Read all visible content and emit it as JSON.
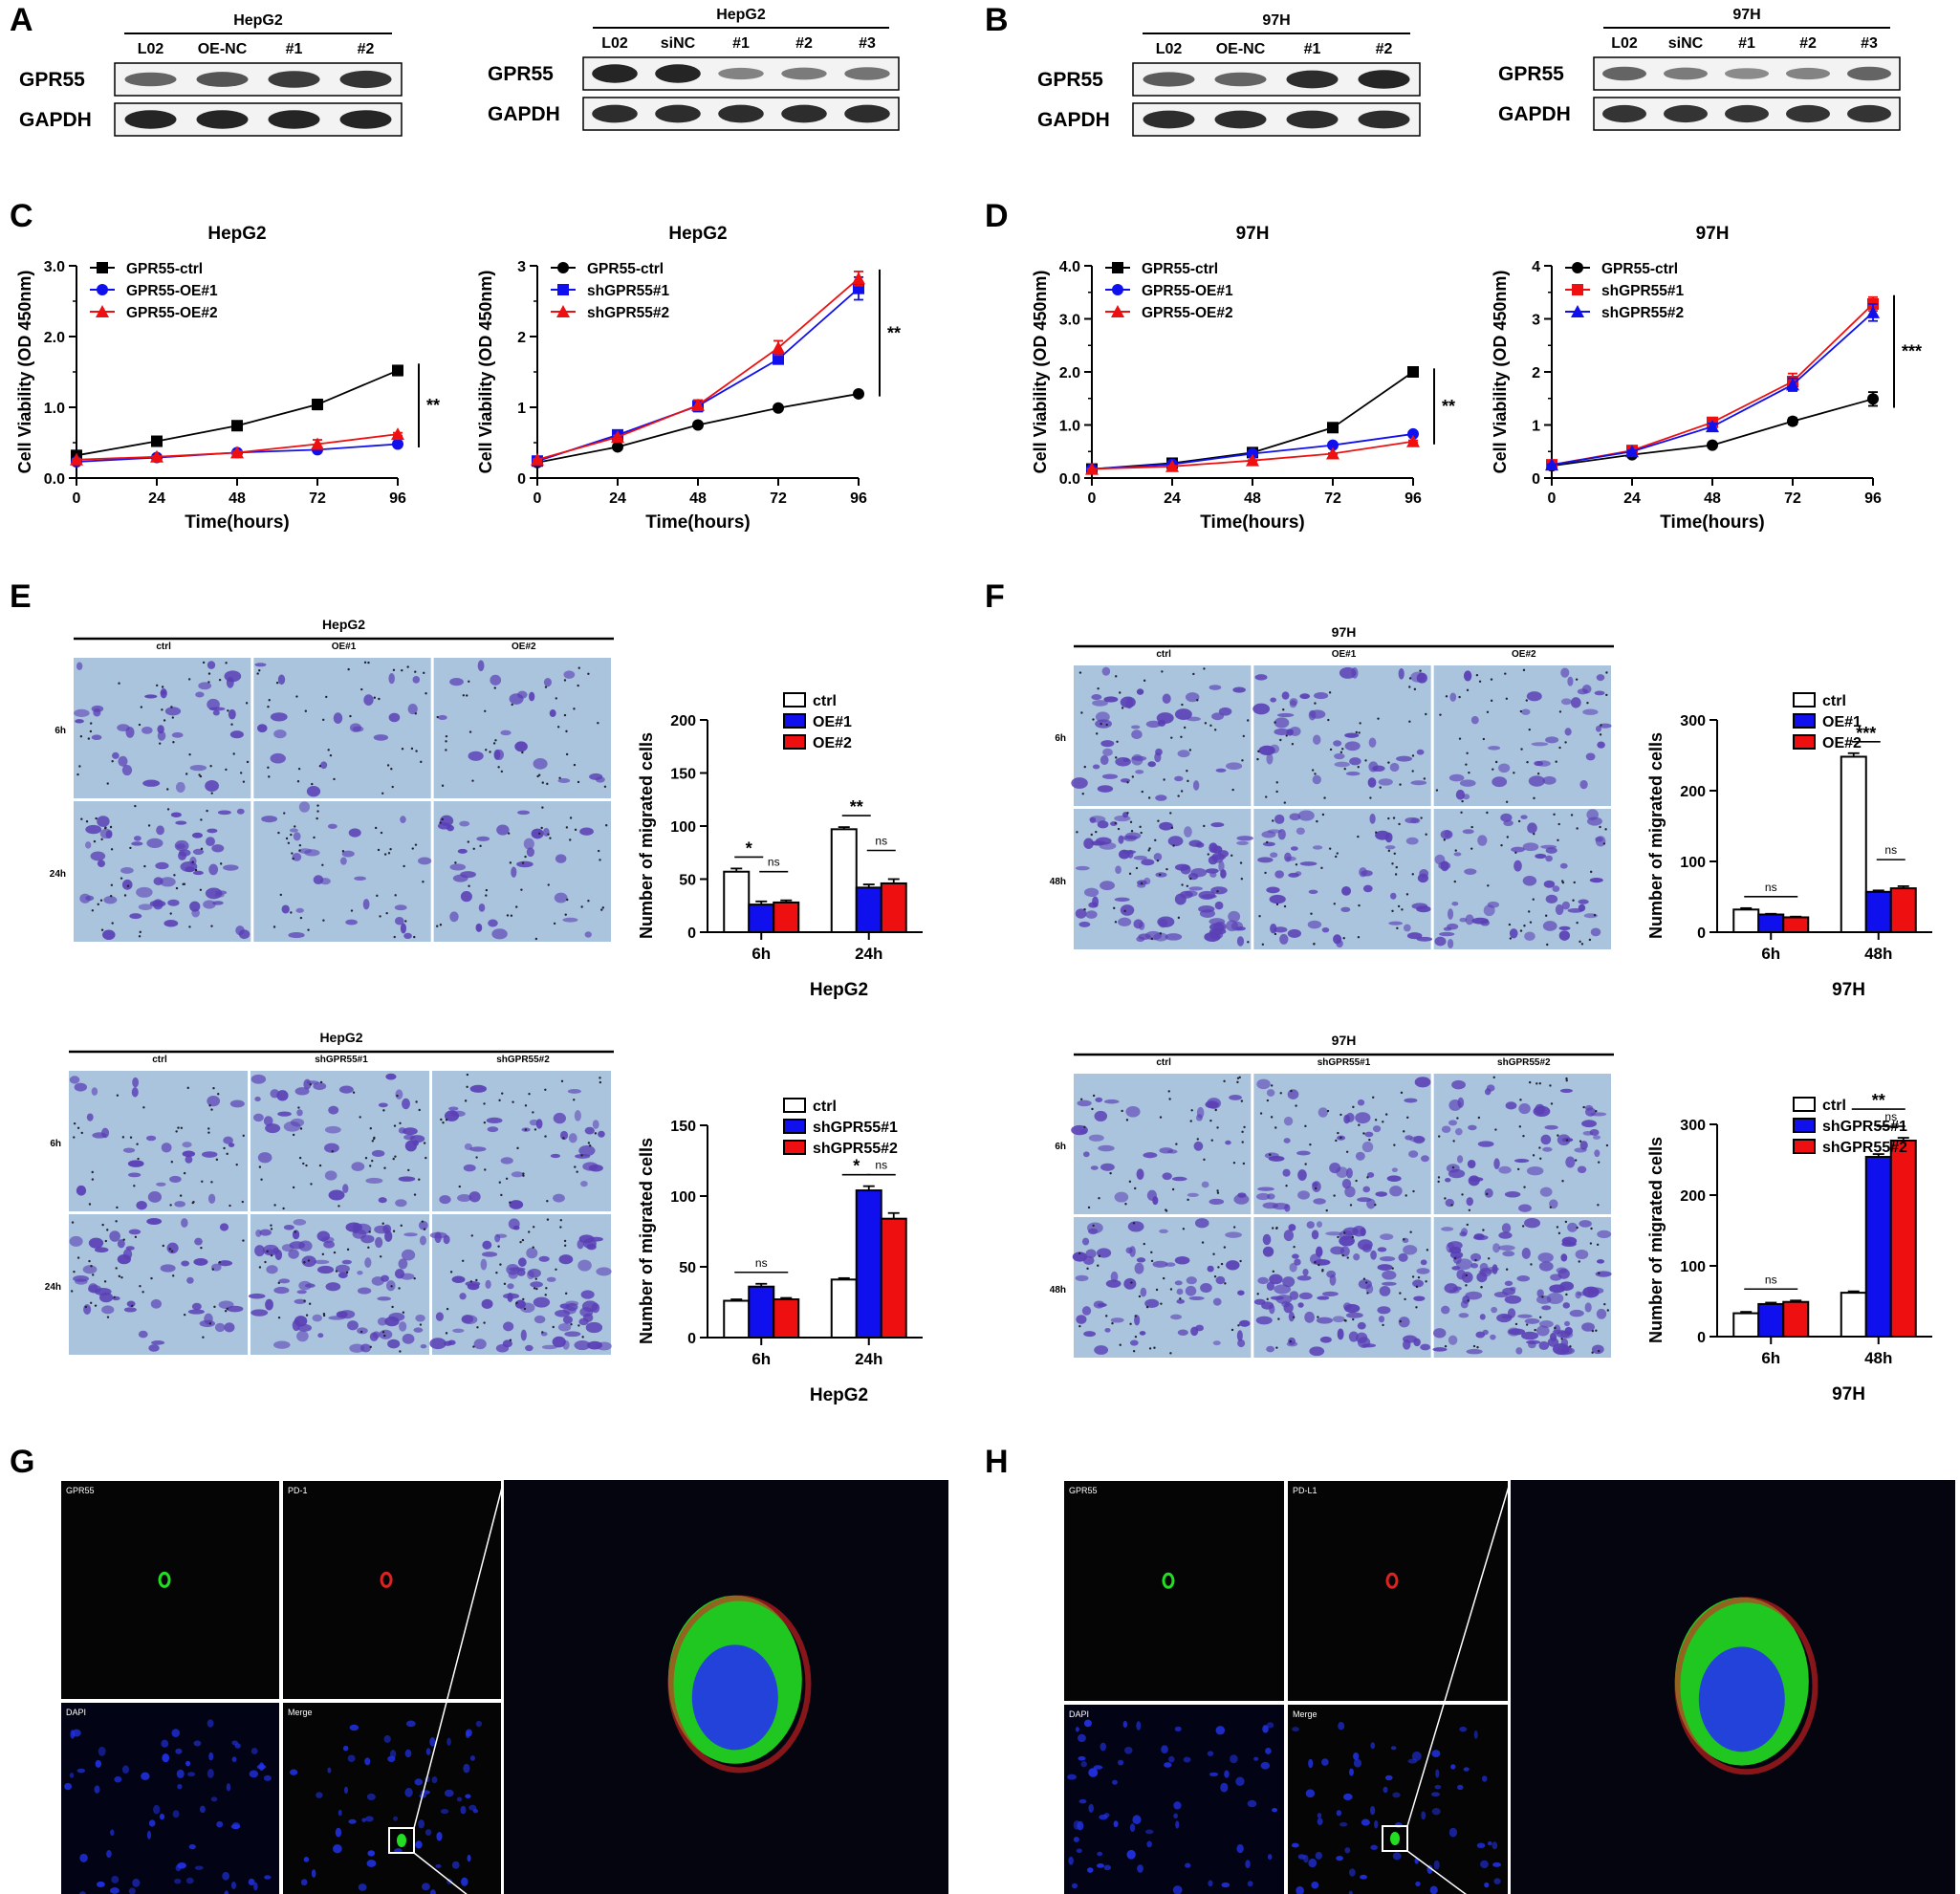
{
  "panel_letters": [
    "A",
    "B",
    "C",
    "D",
    "E",
    "F",
    "G",
    "H"
  ],
  "colors": {
    "black": "#000000",
    "blue": "#1010ee",
    "red": "#ee1010",
    "bar_white": "#ffffff",
    "bar_blue": "#1010ee",
    "bar_red": "#ee1010",
    "transwell_bg": "#aac4de",
    "transwell_stain": "#5a3fb5",
    "if_green": "#22dd22",
    "if_red": "#dd2222",
    "if_blue": "#2233ee"
  },
  "westerns": [
    {
      "panel": "A",
      "cell": "HepG2",
      "lanes": [
        "L02",
        "OE-NC",
        "#1",
        "#2"
      ],
      "proteins": [
        "GPR55",
        "GAPDH"
      ]
    },
    {
      "panel": "A",
      "cell": "HepG2",
      "lanes": [
        "L02",
        "siNC",
        "#1",
        "#2",
        "#3"
      ],
      "proteins": [
        "GPR55",
        "GAPDH"
      ]
    },
    {
      "panel": "B",
      "cell": "97H",
      "lanes": [
        "L02",
        "OE-NC",
        "#1",
        "#2"
      ],
      "proteins": [
        "GPR55",
        "GAPDH"
      ]
    },
    {
      "panel": "B",
      "cell": "97H",
      "lanes": [
        "L02",
        "siNC",
        "#1",
        "#2",
        "#3"
      ],
      "proteins": [
        "GPR55",
        "GAPDH"
      ]
    }
  ],
  "transwell_images": [
    {
      "panel": "E",
      "cell": "HepG2",
      "cols": [
        "ctrl",
        "OE#1",
        "OE#2"
      ],
      "rows": [
        "6h",
        "24h"
      ]
    },
    {
      "panel": "E",
      "cell": "HepG2",
      "cols": [
        "ctrl",
        "shGPR55#1",
        "shGPR55#2"
      ],
      "rows": [
        "6h",
        "24h"
      ]
    },
    {
      "panel": "F",
      "cell": "97H",
      "cols": [
        "ctrl",
        "OE#1",
        "OE#2"
      ],
      "rows": [
        "6h",
        "48h"
      ]
    },
    {
      "panel": "F",
      "cell": "97H",
      "cols": [
        "ctrl",
        "shGPR55#1",
        "shGPR55#2"
      ],
      "rows": [
        "6h",
        "48h"
      ]
    }
  ],
  "if_panels": [
    {
      "panel": "G",
      "labels": [
        "GPR55",
        "PD-1",
        "DAPI",
        "Merge"
      ]
    },
    {
      "panel": "H",
      "labels": [
        "GPR55",
        "PD-L1",
        "DAPI",
        "Merge"
      ]
    }
  ],
  "chart_data": [
    {
      "panel": "C",
      "type": "line",
      "title": "HepG2",
      "xlabel": "Time(hours)",
      "ylabel": "Cell Viability (OD 450nm)",
      "x": [
        0,
        24,
        48,
        72,
        96
      ],
      "xlim": [
        0,
        96
      ],
      "ylim": [
        0,
        3.0
      ],
      "yticks": [
        "0.0",
        "1.0",
        "2.0",
        "3.0"
      ],
      "yminor": 0.5,
      "legend": "top-left",
      "significance": "**",
      "series": [
        {
          "name": "GPR55-ctrl",
          "color": "#000000",
          "marker": "square",
          "values": [
            0.32,
            0.52,
            0.74,
            1.04,
            1.52
          ],
          "err": [
            0.02,
            0.02,
            0.02,
            0.07,
            0.07
          ]
        },
        {
          "name": "GPR55-OE#1",
          "color": "#1010ee",
          "marker": "circle",
          "values": [
            0.23,
            0.29,
            0.36,
            0.4,
            0.48
          ],
          "err": [
            0.01,
            0.01,
            0.01,
            0.02,
            0.02
          ]
        },
        {
          "name": "GPR55-OE#2",
          "color": "#ee1010",
          "marker": "triangle",
          "values": [
            0.26,
            0.3,
            0.36,
            0.48,
            0.62
          ],
          "err": [
            0.01,
            0.01,
            0.02,
            0.06,
            0.02
          ]
        }
      ]
    },
    {
      "panel": "C",
      "type": "line",
      "title": "HepG2",
      "xlabel": "Time(hours)",
      "ylabel": "Cell Viability (OD 450nm)",
      "x": [
        0,
        24,
        48,
        72,
        96
      ],
      "xlim": [
        0,
        96
      ],
      "ylim": [
        0,
        3
      ],
      "yticks": [
        "0",
        "1",
        "2",
        "3"
      ],
      "yminor": 0.5,
      "legend": "top-left",
      "significance": "**",
      "series": [
        {
          "name": "GPR55-ctrl",
          "color": "#000000",
          "marker": "circle",
          "values": [
            0.22,
            0.44,
            0.75,
            0.99,
            1.19
          ],
          "err": [
            0.01,
            0.01,
            0.01,
            0.01,
            0.01
          ]
        },
        {
          "name": "shGPR55#1",
          "color": "#1010ee",
          "marker": "square",
          "values": [
            0.24,
            0.61,
            1.02,
            1.68,
            2.68
          ],
          "err": [
            0.01,
            0.02,
            0.08,
            0.05,
            0.16
          ]
        },
        {
          "name": "shGPR55#2",
          "color": "#ee1010",
          "marker": "triangle",
          "values": [
            0.26,
            0.58,
            1.03,
            1.84,
            2.82
          ],
          "err": [
            0.01,
            0.02,
            0.07,
            0.1,
            0.1
          ]
        }
      ]
    },
    {
      "panel": "D",
      "type": "line",
      "title": "97H",
      "xlabel": "Time(hours)",
      "ylabel": "Cell Viability (OD 450nm)",
      "x": [
        0,
        24,
        48,
        72,
        96
      ],
      "xlim": [
        0,
        96
      ],
      "ylim": [
        0,
        4.0
      ],
      "yticks": [
        "0.0",
        "1.0",
        "2.0",
        "3.0",
        "4.0"
      ],
      "yminor": 0.5,
      "legend": "top-left",
      "significance": "**",
      "series": [
        {
          "name": "GPR55-ctrl",
          "color": "#000000",
          "marker": "square",
          "values": [
            0.17,
            0.28,
            0.48,
            0.95,
            2.0
          ],
          "err": [
            0.01,
            0.01,
            0.02,
            0.03,
            0.03
          ]
        },
        {
          "name": "GPR55-OE#1",
          "color": "#1010ee",
          "marker": "circle",
          "values": [
            0.17,
            0.26,
            0.46,
            0.62,
            0.83
          ],
          "err": [
            0.01,
            0.01,
            0.01,
            0.01,
            0.02
          ]
        },
        {
          "name": "GPR55-OE#2",
          "color": "#ee1010",
          "marker": "triangle",
          "values": [
            0.17,
            0.22,
            0.33,
            0.46,
            0.69
          ],
          "err": [
            0.01,
            0.01,
            0.01,
            0.01,
            0.02
          ]
        }
      ]
    },
    {
      "panel": "D",
      "type": "line",
      "title": "97H",
      "xlabel": "Time(hours)",
      "ylabel": "Cell Viability (OD 450nm)",
      "x": [
        0,
        24,
        48,
        72,
        96
      ],
      "xlim": [
        0,
        96
      ],
      "ylim": [
        0,
        4
      ],
      "yticks": [
        "0",
        "1",
        "2",
        "3",
        "4"
      ],
      "yminor": 0.5,
      "legend": "top-left",
      "significance": "***",
      "series": [
        {
          "name": "GPR55-ctrl",
          "color": "#000000",
          "marker": "circle",
          "values": [
            0.23,
            0.44,
            0.62,
            1.07,
            1.49
          ],
          "err": [
            0.01,
            0.02,
            0.03,
            0.06,
            0.13
          ]
        },
        {
          "name": "shGPR55#1",
          "color": "#ee1010",
          "marker": "square",
          "values": [
            0.25,
            0.52,
            1.05,
            1.82,
            3.28
          ],
          "err": [
            0.01,
            0.02,
            0.06,
            0.15,
            0.13
          ]
        },
        {
          "name": "shGPR55#2",
          "color": "#1010ee",
          "marker": "triangle",
          "values": [
            0.25,
            0.5,
            0.97,
            1.76,
            3.12
          ],
          "err": [
            0.01,
            0.02,
            0.06,
            0.12,
            0.16
          ]
        }
      ]
    },
    {
      "panel": "E",
      "type": "bar",
      "caption": "HepG2",
      "ylabel": "Number of migrated cells",
      "categories": [
        "6h",
        "24h"
      ],
      "ylim": [
        0,
        200
      ],
      "yticks": [
        "0",
        "50",
        "100",
        "150",
        "200"
      ],
      "legend": "top-left",
      "series": [
        {
          "name": "ctrl",
          "color": "#ffffff",
          "values": [
            57,
            97
          ],
          "err": [
            3,
            2
          ]
        },
        {
          "name": "OE#1",
          "color": "#1010ee",
          "values": [
            26,
            42
          ],
          "err": [
            3,
            3
          ]
        },
        {
          "name": "OE#2",
          "color": "#ee1010",
          "values": [
            28,
            46
          ],
          "err": [
            2,
            4
          ]
        }
      ],
      "significance": [
        {
          "group": 0,
          "from": 0,
          "to": 1,
          "label": "*",
          "level": 0
        },
        {
          "group": 0,
          "from": 1,
          "to": 2,
          "label": "ns",
          "level": 1
        },
        {
          "group": 1,
          "from": 0,
          "to": 1,
          "label": "**",
          "level": 0
        },
        {
          "group": 1,
          "from": 1,
          "to": 2,
          "label": "ns",
          "level": 1
        }
      ]
    },
    {
      "panel": "E",
      "type": "bar",
      "caption": "HepG2",
      "ylabel": "Number of migrated cells",
      "categories": [
        "6h",
        "24h"
      ],
      "ylim": [
        0,
        150
      ],
      "yticks": [
        "0",
        "50",
        "100",
        "150"
      ],
      "legend": "top-left",
      "series": [
        {
          "name": "ctrl",
          "color": "#ffffff",
          "values": [
            26,
            41
          ],
          "err": [
            1,
            1
          ]
        },
        {
          "name": "shGPR55#1",
          "color": "#1010ee",
          "values": [
            36,
            104
          ],
          "err": [
            2,
            3
          ]
        },
        {
          "name": "shGPR55#2",
          "color": "#ee1010",
          "values": [
            27,
            84
          ],
          "err": [
            1,
            4
          ]
        }
      ],
      "significance": [
        {
          "group": 0,
          "from": 0,
          "to": 2,
          "label": "ns",
          "level": 0
        },
        {
          "group": 1,
          "from": 0,
          "to": 1,
          "label": "*",
          "level": 0
        },
        {
          "group": 1,
          "from": 1,
          "to": 2,
          "label": "ns",
          "level": 0
        }
      ]
    },
    {
      "panel": "F",
      "type": "bar",
      "caption": "97H",
      "ylabel": "Number of migrated cells",
      "categories": [
        "6h",
        "48h"
      ],
      "ylim": [
        0,
        300
      ],
      "yticks": [
        "0",
        "100",
        "200",
        "300"
      ],
      "legend": "top-left",
      "series": [
        {
          "name": "ctrl",
          "color": "#ffffff",
          "values": [
            32,
            248
          ],
          "err": [
            2,
            5
          ]
        },
        {
          "name": "OE#1",
          "color": "#1010ee",
          "values": [
            25,
            57
          ],
          "err": [
            1,
            2
          ]
        },
        {
          "name": "OE#2",
          "color": "#ee1010",
          "values": [
            21,
            62
          ],
          "err": [
            1,
            3
          ]
        }
      ],
      "significance": [
        {
          "group": 0,
          "from": 0,
          "to": 2,
          "label": "ns",
          "level": 0
        },
        {
          "group": 1,
          "from": 0,
          "to": 1,
          "label": "***",
          "level": 0
        },
        {
          "group": 1,
          "from": 1,
          "to": 2,
          "label": "ns",
          "level": -1
        }
      ]
    },
    {
      "panel": "F",
      "type": "bar",
      "caption": "97H",
      "ylabel": "Number of migrated cells",
      "categories": [
        "6h",
        "48h"
      ],
      "ylim": [
        0,
        300
      ],
      "yticks": [
        "0",
        "100",
        "200",
        "300"
      ],
      "legend": "top-left",
      "series": [
        {
          "name": "ctrl",
          "color": "#ffffff",
          "values": [
            33,
            62
          ],
          "err": [
            2,
            2
          ]
        },
        {
          "name": "shGPR55#1",
          "color": "#1010ee",
          "values": [
            46,
            254
          ],
          "err": [
            2,
            4
          ]
        },
        {
          "name": "shGPR55#2",
          "color": "#ee1010",
          "values": [
            49,
            277
          ],
          "err": [
            2,
            4
          ]
        }
      ],
      "significance": [
        {
          "group": 0,
          "from": 0,
          "to": 2,
          "label": "ns",
          "level": 0
        },
        {
          "group": 1,
          "from": 0,
          "to": 2,
          "label": "**",
          "level": 1
        },
        {
          "group": 1,
          "from": 1,
          "to": 2,
          "label": "ns",
          "level": 0
        }
      ]
    }
  ]
}
